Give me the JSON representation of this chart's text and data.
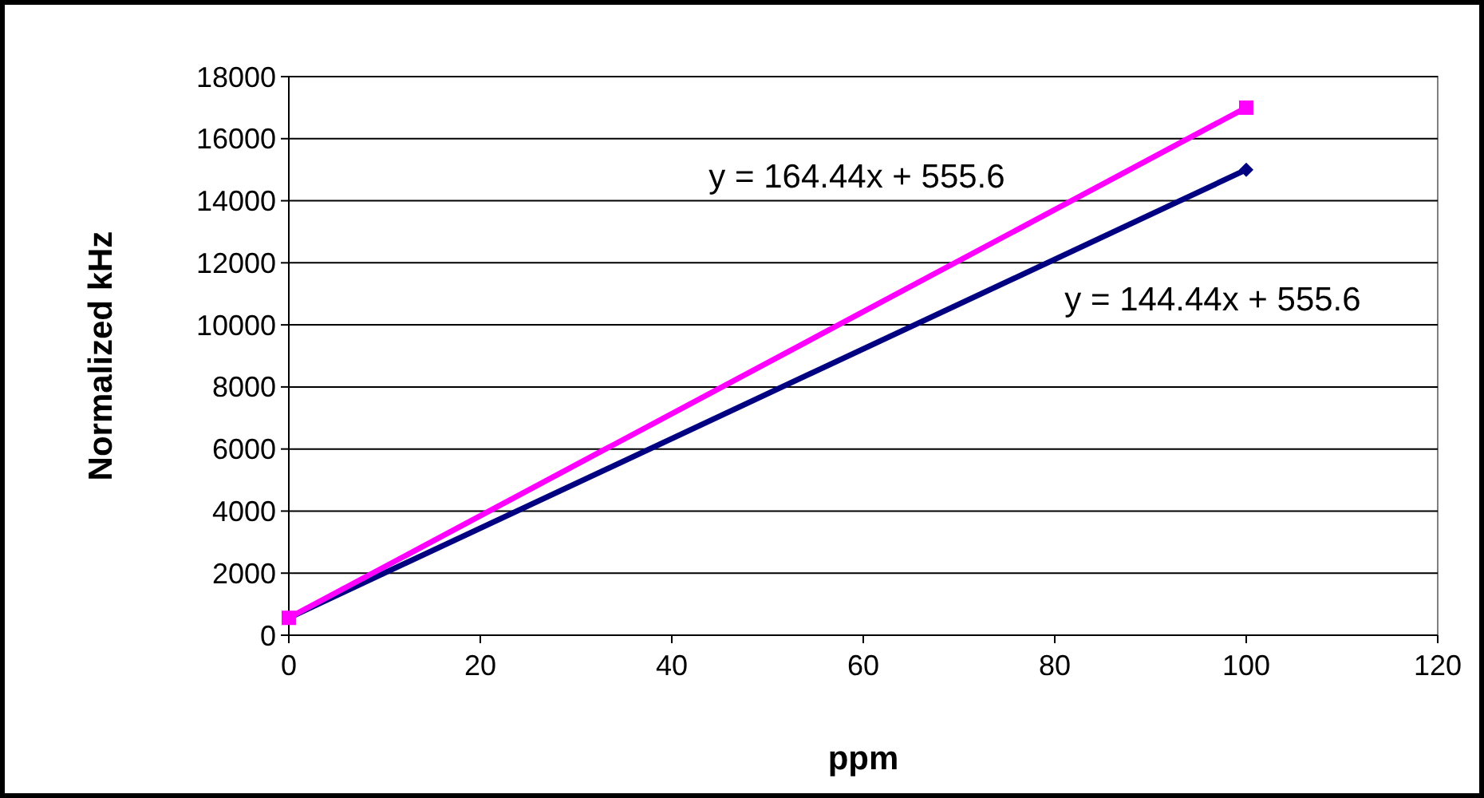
{
  "chart_data": {
    "type": "line",
    "xlabel": "ppm",
    "ylabel": "Normalized kHz",
    "x": [
      0,
      100
    ],
    "series": [
      {
        "color": "#000080",
        "values": [
          560,
          15000
        ],
        "marker": "diamond"
      },
      {
        "color": "#ff00ff",
        "values": [
          560,
          17000
        ],
        "marker": "square"
      }
    ],
    "xlim": [
      0,
      120
    ],
    "xticks": [
      0,
      20,
      40,
      60,
      80,
      100,
      120
    ],
    "ylim": [
      0,
      18000
    ],
    "yticks": [
      0,
      2000,
      4000,
      6000,
      8000,
      10000,
      12000,
      14000,
      16000,
      18000
    ],
    "grid": "y",
    "line_style": "solid",
    "annotations": [
      "y = 164.44x + 555.6",
      "y = 144.44x + 555.6"
    ]
  }
}
